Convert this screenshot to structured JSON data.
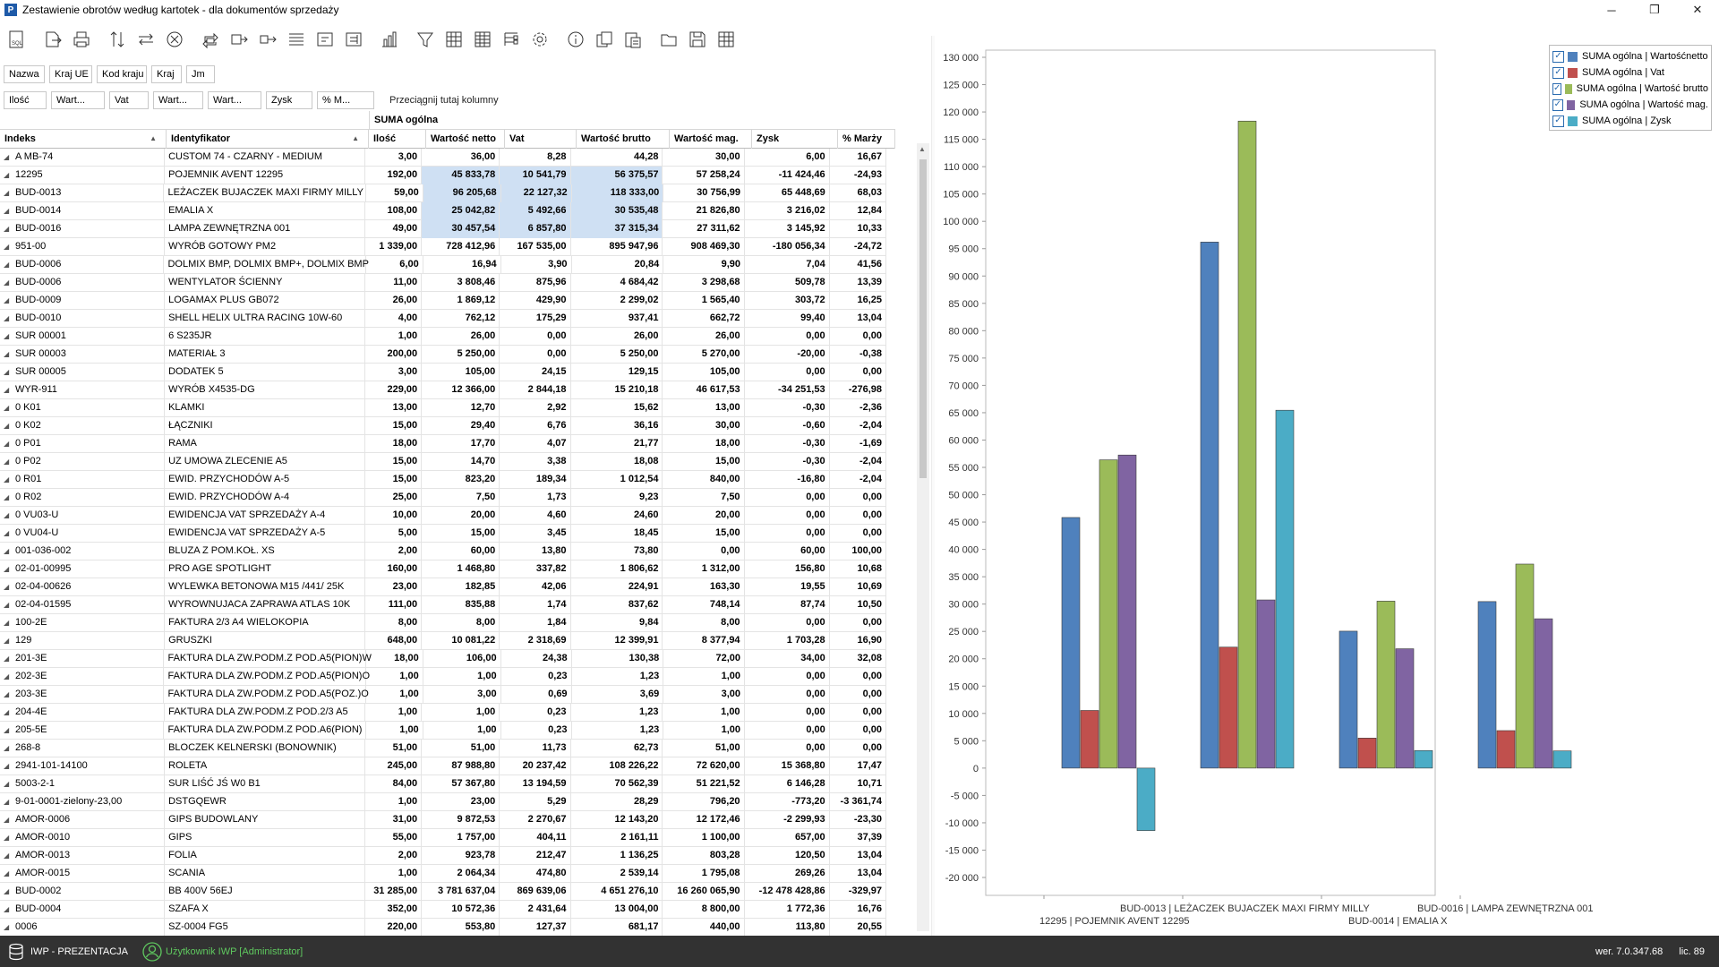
{
  "window": {
    "app_icon_letter": "P",
    "title": "Zestawienie obrotów według kartotek - dla dokumentów sprzedaży",
    "minimize_glyph": "─",
    "maximize_glyph": "❐",
    "close_glyph": "✕"
  },
  "toolbar": {
    "icons": [
      "sql-icon",
      "export-icon",
      "print-icon",
      "sort-icon",
      "swap-icon",
      "clear-icon",
      "refresh-icon",
      "move-right-icon",
      "move-right-alt-icon",
      "align-icon",
      "collapse-icon",
      "expand-icon",
      "chart-icon",
      "filter-icon",
      "grid-icon",
      "grid-alt-icon",
      "tree-icon",
      "settings-icon",
      "info-icon",
      "copy-icon",
      "paste-icon",
      "folder-icon",
      "save-icon",
      "table-icon"
    ]
  },
  "filter_chips_row1": [
    "Nazwa",
    "Kraj UE",
    "Kod kraju",
    "Kraj",
    "Jm"
  ],
  "filter_chips_row2": [
    "Ilość",
    "Wart...",
    "Vat",
    "Wart...",
    "Wart...",
    "Zysk",
    "% M..."
  ],
  "drop_hint": "Przeciągnij tutaj kolumny",
  "grid": {
    "band_label": "SUMA ogólna",
    "columns": [
      "Indeks",
      "Identyfikator",
      "Ilość",
      "Wartość netto",
      "Vat",
      "Wartość brutto",
      "Wartość mag.",
      "Zysk",
      "% Marży"
    ],
    "sort_glyph": "▲",
    "expand_glyph": "◢",
    "rows": [
      [
        "A MB-74",
        "CUSTOM 74 - CZARNY - MEDIUM",
        "3,00",
        "36,00",
        "8,28",
        "44,28",
        "30,00",
        "6,00",
        "16,67"
      ],
      [
        "12295",
        "POJEMNIK AVENT 12295",
        "192,00",
        "45 833,78",
        "10 541,79",
        "56 375,57",
        "57 258,24",
        "-11 424,46",
        "-24,93"
      ],
      [
        "BUD-0013",
        "LEŻACZEK BUJACZEK MAXI FIRMY MILLY",
        "59,00",
        "96 205,68",
        "22 127,32",
        "118 333,00",
        "30 756,99",
        "65 448,69",
        "68,03"
      ],
      [
        "BUD-0014",
        "EMALIA X",
        "108,00",
        "25 042,82",
        "5 492,66",
        "30 535,48",
        "21 826,80",
        "3 216,02",
        "12,84"
      ],
      [
        "BUD-0016",
        "LAMPA ZEWNĘTRZNA 001",
        "49,00",
        "30 457,54",
        "6 857,80",
        "37 315,34",
        "27 311,62",
        "3 145,92",
        "10,33"
      ],
      [
        "951-00",
        "WYRÓB GOTOWY PM2",
        "1 339,00",
        "728 412,96",
        "167 535,00",
        "895 947,96",
        "908 469,30",
        "-180 056,34",
        "-24,72"
      ],
      [
        "BUD-0006",
        "DOLMIX BMP, DOLMIX BMP+, DOLMIX BMP",
        "6,00",
        "16,94",
        "3,90",
        "20,84",
        "9,90",
        "7,04",
        "41,56"
      ],
      [
        "BUD-0006",
        "WENTYLATOR ŚCIENNY",
        "11,00",
        "3 808,46",
        "875,96",
        "4 684,42",
        "3 298,68",
        "509,78",
        "13,39"
      ],
      [
        "BUD-0009",
        "LOGAMAX PLUS GB072",
        "26,00",
        "1 869,12",
        "429,90",
        "2 299,02",
        "1 565,40",
        "303,72",
        "16,25"
      ],
      [
        "BUD-0010",
        "SHELL HELIX ULTRA RACING 10W-60",
        "4,00",
        "762,12",
        "175,29",
        "937,41",
        "662,72",
        "99,40",
        "13,04"
      ],
      [
        "SUR 00001",
        "6 S235JR",
        "1,00",
        "26,00",
        "0,00",
        "26,00",
        "26,00",
        "0,00",
        "0,00"
      ],
      [
        "SUR 00003",
        "MATERIAŁ 3",
        "200,00",
        "5 250,00",
        "0,00",
        "5 250,00",
        "5 270,00",
        "-20,00",
        "-0,38"
      ],
      [
        "SUR 00005",
        "DODATEK 5",
        "3,00",
        "105,00",
        "24,15",
        "129,15",
        "105,00",
        "0,00",
        "0,00"
      ],
      [
        "WYR-911",
        "WYRÓB X4535-DG",
        "229,00",
        "12 366,00",
        "2 844,18",
        "15 210,18",
        "46 617,53",
        "-34 251,53",
        "-276,98"
      ],
      [
        "0 K01",
        "KLAMKI",
        "13,00",
        "12,70",
        "2,92",
        "15,62",
        "13,00",
        "-0,30",
        "-2,36"
      ],
      [
        "0 K02",
        "ŁĄCZNIKI",
        "15,00",
        "29,40",
        "6,76",
        "36,16",
        "30,00",
        "-0,60",
        "-2,04"
      ],
      [
        "0 P01",
        "RAMA",
        "18,00",
        "17,70",
        "4,07",
        "21,77",
        "18,00",
        "-0,30",
        "-1,69"
      ],
      [
        "0 P02",
        "UZ UMOWA ZLECENIE A5",
        "15,00",
        "14,70",
        "3,38",
        "18,08",
        "15,00",
        "-0,30",
        "-2,04"
      ],
      [
        "0 R01",
        "EWID. PRZYCHODÓW A-5",
        "15,00",
        "823,20",
        "189,34",
        "1 012,54",
        "840,00",
        "-16,80",
        "-2,04"
      ],
      [
        "0 R02",
        "EWID. PRZYCHODÓW A-4",
        "25,00",
        "7,50",
        "1,73",
        "9,23",
        "7,50",
        "0,00",
        "0,00"
      ],
      [
        "0 VU03-U",
        "EWIDENCJA VAT SPRZEDAŻY A-4",
        "10,00",
        "20,00",
        "4,60",
        "24,60",
        "20,00",
        "0,00",
        "0,00"
      ],
      [
        "0 VU04-U",
        "EWIDENCJA VAT SPRZEDAŻY A-5",
        "5,00",
        "15,00",
        "3,45",
        "18,45",
        "15,00",
        "0,00",
        "0,00"
      ],
      [
        "001-036-002",
        "BLUZA Z POM.KOŁ. XS",
        "2,00",
        "60,00",
        "13,80",
        "73,80",
        "0,00",
        "60,00",
        "100,00"
      ],
      [
        "02-01-00995",
        "PRO AGE SPOTLIGHT",
        "160,00",
        "1 468,80",
        "337,82",
        "1 806,62",
        "1 312,00",
        "156,80",
        "10,68"
      ],
      [
        "02-04-00626",
        "WYLEWKA BETONOWA M15 /441/ 25K",
        "23,00",
        "182,85",
        "42,06",
        "224,91",
        "163,30",
        "19,55",
        "10,69"
      ],
      [
        "02-04-01595",
        "WYROWNUJACA ZAPRAWA ATLAS 10K",
        "111,00",
        "835,88",
        "1,74",
        "837,62",
        "748,14",
        "87,74",
        "10,50"
      ],
      [
        "100-2E",
        "FAKTURA 2/3 A4 WIELOKOPIA",
        "8,00",
        "8,00",
        "1,84",
        "9,84",
        "8,00",
        "0,00",
        "0,00"
      ],
      [
        "129",
        "GRUSZKI",
        "648,00",
        "10 081,22",
        "2 318,69",
        "12 399,91",
        "8 377,94",
        "1 703,28",
        "16,90"
      ],
      [
        "201-3E",
        "FAKTURA DLA ZW.PODM.Z POD.A5(PION)W",
        "18,00",
        "106,00",
        "24,38",
        "130,38",
        "72,00",
        "34,00",
        "32,08"
      ],
      [
        "202-3E",
        "FAKTURA DLA ZW.PODM.Z POD.A5(PION)O",
        "1,00",
        "1,00",
        "0,23",
        "1,23",
        "1,00",
        "0,00",
        "0,00"
      ],
      [
        "203-3E",
        "FAKTURA DLA ZW.PODM.Z POD.A5(POZ.)O",
        "1,00",
        "3,00",
        "0,69",
        "3,69",
        "3,00",
        "0,00",
        "0,00"
      ],
      [
        "204-4E",
        "FAKTURA DLA ZW.PODM.Z POD.2/3 A5",
        "1,00",
        "1,00",
        "0,23",
        "1,23",
        "1,00",
        "0,00",
        "0,00"
      ],
      [
        "205-5E",
        "FAKTURA DLA ZW.PODM.Z POD.A6(PION)",
        "1,00",
        "1,00",
        "0,23",
        "1,23",
        "1,00",
        "0,00",
        "0,00"
      ],
      [
        "268-8",
        "BLOCZEK KELNERSKI (BONOWNIK)",
        "51,00",
        "51,00",
        "11,73",
        "62,73",
        "51,00",
        "0,00",
        "0,00"
      ],
      [
        "2941-101-14100",
        "ROLETA",
        "245,00",
        "87 988,80",
        "20 237,42",
        "108 226,22",
        "72 620,00",
        "15 368,80",
        "17,47"
      ],
      [
        "5003-2-1",
        "SUR LIŚĆ JŚ W0 B1",
        "84,00",
        "57 367,80",
        "13 194,59",
        "70 562,39",
        "51 221,52",
        "6 146,28",
        "10,71"
      ],
      [
        "9-01-0001-zielony-23,00",
        "DSTGQEWR",
        "1,00",
        "23,00",
        "5,29",
        "28,29",
        "796,20",
        "-773,20",
        "-3 361,74"
      ],
      [
        "AMOR-0006",
        "GIPS BUDOWLANY",
        "31,00",
        "9 872,53",
        "2 270,67",
        "12 143,20",
        "12 172,46",
        "-2 299,93",
        "-23,30"
      ],
      [
        "AMOR-0010",
        "GIPS",
        "55,00",
        "1 757,00",
        "404,11",
        "2 161,11",
        "1 100,00",
        "657,00",
        "37,39"
      ],
      [
        "AMOR-0013",
        "FOLIA",
        "2,00",
        "923,78",
        "212,47",
        "1 136,25",
        "803,28",
        "120,50",
        "13,04"
      ],
      [
        "AMOR-0015",
        "SCANIA",
        "1,00",
        "2 064,34",
        "474,80",
        "2 539,14",
        "1 795,08",
        "269,26",
        "13,04"
      ],
      [
        "BUD-0002",
        "BB 400V 56EJ",
        "31 285,00",
        "3 781 637,04",
        "869 639,06",
        "4 651 276,10",
        "16 260 065,90",
        "-12 478 428,86",
        "-329,97"
      ],
      [
        "BUD-0004",
        "SZAFA X",
        "352,00",
        "10 572,36",
        "2 431,64",
        "13 004,00",
        "8 800,00",
        "1 772,36",
        "16,76"
      ],
      [
        "0006",
        "SZ-0004 FG5",
        "220,00",
        "553,80",
        "127,37",
        "681,17",
        "440,00",
        "113,80",
        "20,55"
      ]
    ]
  },
  "chart_data": {
    "type": "bar",
    "categories": [
      "12295 | POJEMNIK AVENT 12295",
      "BUD-0013 | LEŻACZEK BUJACZEK MAXI FIRMY MILLY",
      "BUD-0014 | EMALIA X",
      "BUD-0016 | LAMPA ZEWNĘTRZNA 001"
    ],
    "series": [
      {
        "name": "SUMA ogólna | Wartośćnetto",
        "color": "#4f81bd",
        "values": [
          45833.78,
          96205.68,
          25042.82,
          30457.54
        ]
      },
      {
        "name": "SUMA ogólna | Vat",
        "color": "#c0504d",
        "values": [
          10541.79,
          22127.32,
          5492.66,
          6857.8
        ]
      },
      {
        "name": "SUMA ogólna | Wartość brutto",
        "color": "#9bbb59",
        "values": [
          56375.57,
          118333.0,
          30535.48,
          37315.34
        ]
      },
      {
        "name": "SUMA ogólna | Wartość mag.",
        "color": "#8064a2",
        "values": [
          57258.24,
          30756.99,
          21826.8,
          27311.62
        ]
      },
      {
        "name": "SUMA ogólna | Zysk",
        "color": "#4bacc6",
        "values": [
          -11424.46,
          65448.69,
          3216.02,
          3145.92
        ]
      }
    ],
    "ylim": [
      -20000,
      130000
    ],
    "yticks": [
      "130 000",
      "125 000",
      "120 000",
      "115 000",
      "110 000",
      "105 000",
      "100 000",
      "95 000",
      "90 000",
      "85 000",
      "80 000",
      "75 000",
      "70 000",
      "65 000",
      "60 000",
      "55 000",
      "50 000",
      "45 000",
      "40 000",
      "35 000",
      "30 000",
      "25 000",
      "20 000",
      "15 000",
      "10 000",
      "5 000",
      "0",
      "-5 000",
      "-10 000",
      "-15 000",
      "-20 000"
    ],
    "legend_position": "top-right",
    "grid": false,
    "check_glyph": "✓"
  },
  "statusbar": {
    "database": "IWP - PREZENTACJA",
    "user": "Użytkownik IWP [Administrator]",
    "version": "wer. 7.0.347.68",
    "license": "lic. 89"
  }
}
